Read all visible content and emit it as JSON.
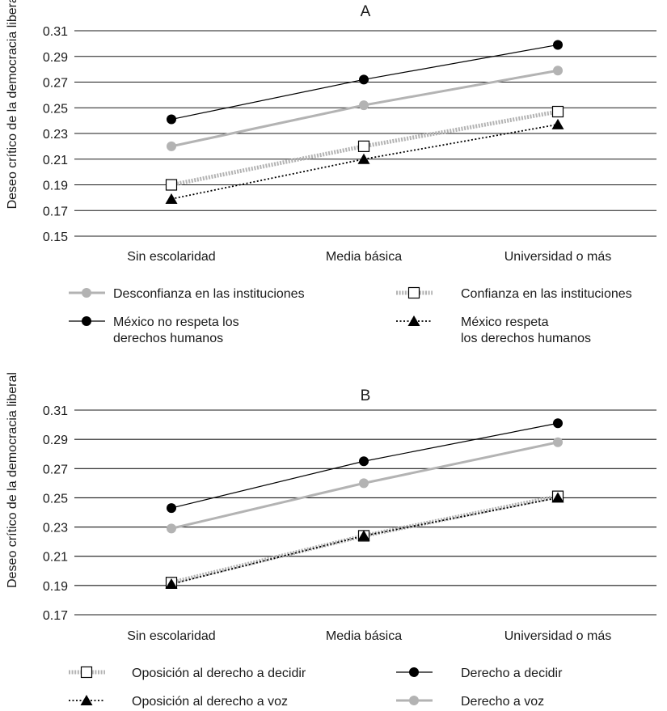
{
  "chart_data": [
    {
      "type": "line",
      "title": "A",
      "xlabel": "",
      "ylabel": "Deseo crítico de la democracia liberal",
      "categories": [
        "Sin escolaridad",
        "Media básica",
        "Universidad o más"
      ],
      "ylim": [
        0.15,
        0.31
      ],
      "yticks": [
        "0.31",
        "0.29",
        "0.27",
        "0.25",
        "0.23",
        "0.21",
        "0.19",
        "0.17",
        "0.15"
      ],
      "grid": true,
      "legend_position": "bottom",
      "series": [
        {
          "name": "Desconfianza en las instituciones",
          "values": [
            0.22,
            0.252,
            0.279
          ],
          "color": "#b3b3b3",
          "marker": "circle",
          "line": "solid"
        },
        {
          "name": "Confianza en las instituciones",
          "values": [
            0.19,
            0.22,
            0.247
          ],
          "color": "#b3b3b3",
          "marker": "square",
          "line": "dotted"
        },
        {
          "name": "México no respeta los\nderechos humanos",
          "values": [
            0.241,
            0.272,
            0.299
          ],
          "color": "#000000",
          "marker": "circle",
          "line": "solid"
        },
        {
          "name": "México respeta\nlos derechos humanos",
          "values": [
            0.179,
            0.21,
            0.237
          ],
          "color": "#000000",
          "marker": "triangle",
          "line": "dotted"
        }
      ]
    },
    {
      "type": "line",
      "title": "B",
      "xlabel": "",
      "ylabel": "Deseo crítico de la democracia liberal",
      "categories": [
        "Sin escolaridad",
        "Media básica",
        "Universidad o más"
      ],
      "ylim": [
        0.17,
        0.31
      ],
      "yticks": [
        "0.31",
        "0.29",
        "0.27",
        "0.25",
        "0.23",
        "0.21",
        "0.19",
        "0.17"
      ],
      "grid": true,
      "legend_position": "bottom",
      "series": [
        {
          "name": "Oposición al derecho a decidir",
          "values": [
            0.192,
            0.224,
            0.251
          ],
          "color": "#b3b3b3",
          "marker": "square",
          "line": "dotted"
        },
        {
          "name": "Derecho a decidir",
          "values": [
            0.243,
            0.275,
            0.301
          ],
          "color": "#000000",
          "marker": "circle",
          "line": "solid"
        },
        {
          "name": "Oposición al derecho a voz",
          "values": [
            0.191,
            0.224,
            0.25
          ],
          "color": "#000000",
          "marker": "triangle",
          "line": "dotted"
        },
        {
          "name": "Derecho a voz",
          "values": [
            0.229,
            0.26,
            0.288
          ],
          "color": "#b3b3b3",
          "marker": "circle",
          "line": "solid"
        }
      ]
    }
  ]
}
